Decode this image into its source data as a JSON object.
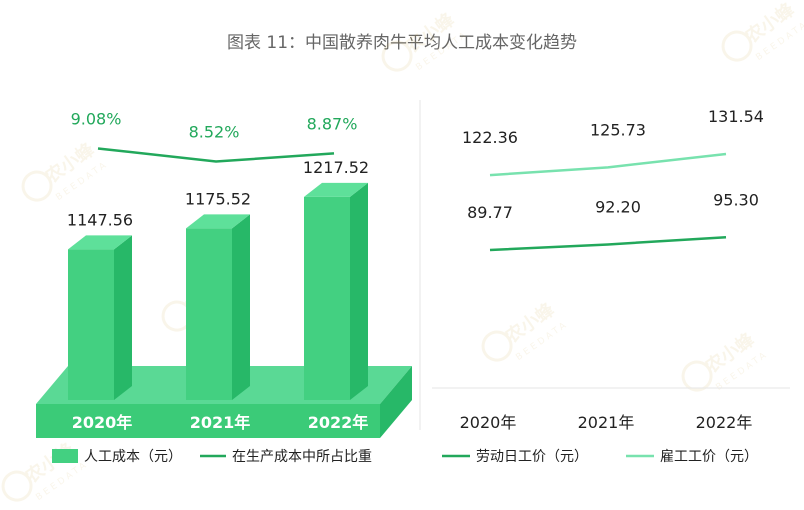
{
  "title": "图表 11：中国散养肉牛平均人工成本变化趋势",
  "colors": {
    "bar_front": "#43d081",
    "bar_side": "#27b868",
    "bar_top": "#5ee09a",
    "base_front": "#3bcb78",
    "base_top": "#5ad995",
    "share_line": "#22a85b",
    "dark_green": "#22a85b",
    "light_green": "#78e2ae",
    "pct_text": "#22a85b",
    "divider": "#e6e6e6"
  },
  "chart_data": [
    {
      "type": "bar",
      "categories": [
        "2020年",
        "2021年",
        "2022年"
      ],
      "series": [
        {
          "name": "人工成本（元）",
          "values": [
            1147.56,
            1175.52,
            1217.52
          ],
          "labels": [
            "1147.56",
            "1175.52",
            "1217.52"
          ]
        }
      ],
      "secondary_series": [
        {
          "name": "在生产成本中所占比重",
          "type": "line",
          "values": [
            9.08,
            8.52,
            8.87
          ],
          "labels": [
            "9.08%",
            "8.52%",
            "8.87%"
          ],
          "unit": "%"
        }
      ],
      "legend": {
        "position": "bottom",
        "items": [
          {
            "label": "人工成本（元）",
            "symbol": "bar-icon"
          },
          {
            "label": "在生产成本中所占比重",
            "symbol": "line-icon"
          }
        ]
      }
    },
    {
      "type": "line",
      "categories": [
        "2020年",
        "2021年",
        "2022年"
      ],
      "series": [
        {
          "name": "劳动日工价（元）",
          "values": [
            89.77,
            92.2,
            95.3
          ],
          "labels": [
            "89.77",
            "92.20",
            "95.30"
          ]
        },
        {
          "name": "雇工工价（元）",
          "values": [
            122.36,
            125.73,
            131.54
          ],
          "labels": [
            "122.36",
            "125.73",
            "131.54"
          ]
        }
      ],
      "legend": {
        "position": "bottom",
        "items": [
          {
            "label": "劳动日工价（元）",
            "symbol": "line-icon"
          },
          {
            "label": "雇工工价（元）",
            "symbol": "line-icon"
          }
        ]
      }
    }
  ],
  "watermark": {
    "text_cn": "农小蜂",
    "text_en": "BEEDATA"
  }
}
